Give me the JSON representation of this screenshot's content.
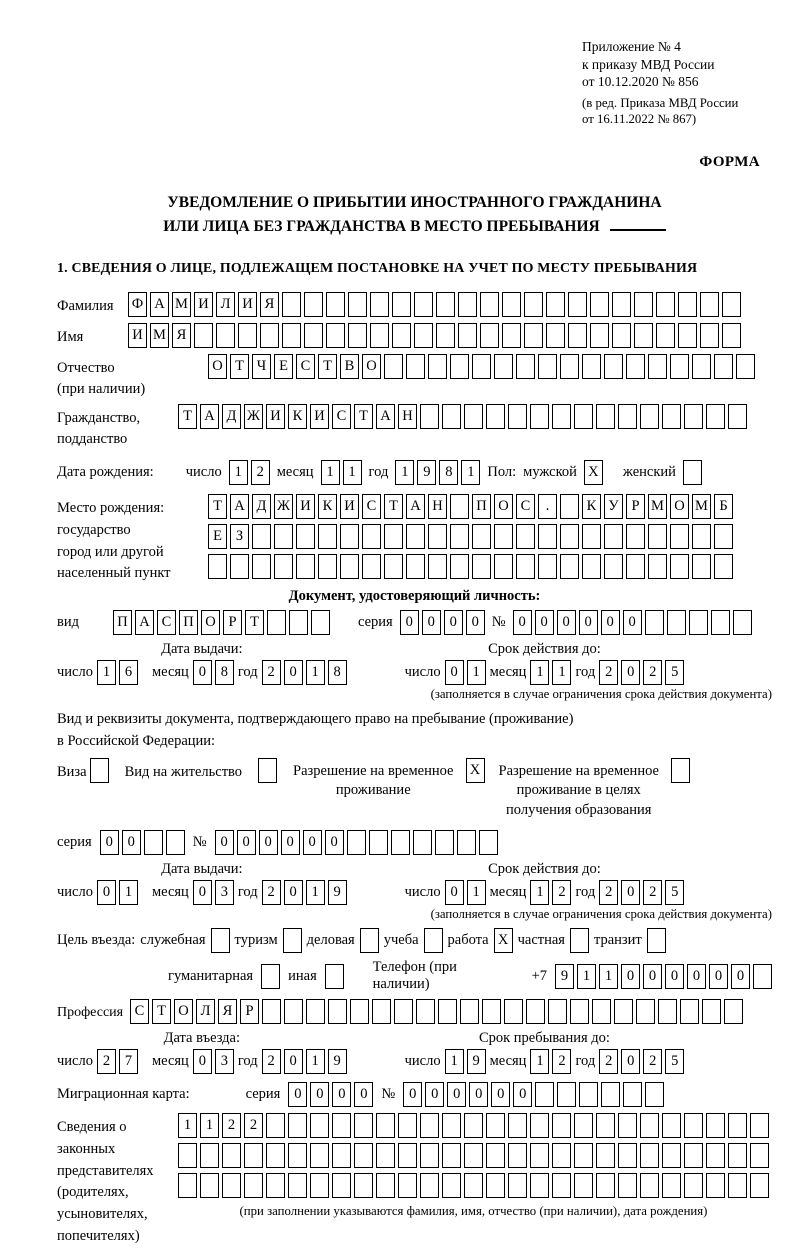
{
  "header": {
    "appendix_lines": [
      "Приложение № 4",
      "к приказу МВД России",
      "от 10.12.2020 № 856"
    ],
    "revision_lines": [
      "(в ред. Приказа МВД России",
      "от 16.11.2022 № 867)"
    ],
    "form_label": "ФОРМА"
  },
  "title": {
    "line1": "УВЕДОМЛЕНИЕ О ПРИБЫТИИ ИНОСТРАННОГО ГРАЖДАНИНА",
    "line2": "ИЛИ ЛИЦА БЕЗ ГРАЖДАНСТВА В МЕСТО ПРЕБЫВАНИЯ"
  },
  "section1_heading": "1. СВЕДЕНИЯ О ЛИЦЕ, ПОДЛЕЖАЩЕМ ПОСТАНОВКЕ НА УЧЕТ ПО МЕСТУ ПРЕБЫВАНИЯ",
  "labels": {
    "day": "число",
    "month": "месяц",
    "year": "год",
    "series": "серия",
    "number_sign": "№",
    "issue_date_header": "Дата выдачи:",
    "validity_header": "Срок действия до:",
    "validity_note": "(заполняется в случае ограничения срока действия документа)"
  },
  "rows": {
    "surname": {
      "label": "Фамилия",
      "grid": {
        "count": 28,
        "value": "ФАМИЛИЯ"
      }
    },
    "name": {
      "label": "Имя",
      "grid": {
        "count": 28,
        "value": "ИМЯ"
      }
    },
    "patronymic": {
      "label": [
        "Отчество",
        "(при наличии)"
      ],
      "grid": {
        "count": 25,
        "value": "ОТЧЕСТВО"
      }
    },
    "citizenship": {
      "label": [
        "Гражданство,",
        "подданство"
      ],
      "grid": {
        "count": 26,
        "value": "ТАДЖИКИСТАН"
      }
    },
    "birth": {
      "label": "Дата рождения:",
      "day": {
        "count": 2,
        "value": "12"
      },
      "month": {
        "count": 2,
        "value": "11"
      },
      "year": {
        "count": 4,
        "value": "1981"
      },
      "sex_label": "Пол:",
      "male_label": "мужской",
      "female_label": "женский",
      "male_box": {
        "count": 1,
        "value": "X"
      },
      "female_box": {
        "count": 1,
        "value": ""
      }
    },
    "birth_place": {
      "label": [
        "Место рождения:",
        "государство",
        "город или другой",
        "населенный пункт"
      ],
      "row1": {
        "count": 24,
        "value": "ТАДЖИКИСТАН ПОС. КУРМОМБ"
      },
      "row2": {
        "count": 24,
        "value": "ЕЗ"
      },
      "row3": {
        "count": 24,
        "value": ""
      }
    },
    "identity_doc": {
      "heading": "Документ, удостоверяющий личность:",
      "type_label": "вид",
      "type": {
        "count": 10,
        "value": "ПАСПОРТ"
      },
      "series": {
        "count": 4,
        "value": "0000"
      },
      "number": {
        "count": 11,
        "value": "000000"
      }
    },
    "id_dates": {
      "issue_day": {
        "count": 2,
        "value": "16"
      },
      "issue_month": {
        "count": 2,
        "value": "08"
      },
      "issue_year": {
        "count": 4,
        "value": "2018"
      },
      "valid_day": {
        "count": 2,
        "value": "01"
      },
      "valid_month": {
        "count": 2,
        "value": "11"
      },
      "valid_year": {
        "count": 4,
        "value": "2025"
      }
    },
    "residence_doc": {
      "line1": "Вид и реквизиты документа, подтверждающего право на пребывание (проживание)",
      "line2": "в Российской Федерации:",
      "visa_label": "Виза",
      "visa_box": {
        "count": 1,
        "value": ""
      },
      "permit_label": "Вид на жительство",
      "permit_box": {
        "count": 1,
        "value": ""
      },
      "temp_label": [
        "Разрешение на временное",
        "проживание"
      ],
      "temp_box": {
        "count": 1,
        "value": "X"
      },
      "temp_edu_label": [
        "Разрешение на временное",
        "проживание в целях",
        "получения образования"
      ],
      "temp_edu_box": {
        "count": 1,
        "value": ""
      },
      "series": {
        "count": 4,
        "value": "00"
      },
      "number": {
        "count": 13,
        "value": "000000"
      }
    },
    "res_dates": {
      "issue_day": {
        "count": 2,
        "value": "01"
      },
      "issue_month": {
        "count": 2,
        "value": "03"
      },
      "issue_year": {
        "count": 4,
        "value": "2019"
      },
      "valid_day": {
        "count": 2,
        "value": "01"
      },
      "valid_month": {
        "count": 2,
        "value": "12"
      },
      "valid_year": {
        "count": 4,
        "value": "2025"
      }
    },
    "purpose": {
      "label": "Цель въезда:",
      "options": [
        "служебная",
        "туризм",
        "деловая",
        "учеба",
        "работа",
        "частная",
        "транзит"
      ],
      "boxes": [
        {
          "count": 1,
          "value": ""
        },
        {
          "count": 1,
          "value": ""
        },
        {
          "count": 1,
          "value": ""
        },
        {
          "count": 1,
          "value": ""
        },
        {
          "count": 1,
          "value": "X"
        },
        {
          "count": 1,
          "value": ""
        },
        {
          "count": 1,
          "value": ""
        }
      ],
      "humanitarian_label": "гуманитарная",
      "humanitarian_box": {
        "count": 1,
        "value": ""
      },
      "other_label": "иная",
      "other_box": {
        "count": 1,
        "value": ""
      },
      "phone_label": "Телефон (при наличии)",
      "phone_prefix": "+7",
      "phone": {
        "count": 10,
        "value": "911000000"
      }
    },
    "profession": {
      "label": "Профессия",
      "grid": {
        "count": 28,
        "value": "СТОЛЯР"
      }
    },
    "entry_dates": {
      "left_header": "Дата въезда:",
      "right_header": "Срок пребывания до:",
      "entry_day": {
        "count": 2,
        "value": "27"
      },
      "entry_month": {
        "count": 2,
        "value": "03"
      },
      "entry_year": {
        "count": 4,
        "value": "2019"
      },
      "stay_day": {
        "count": 2,
        "value": "19"
      },
      "stay_month": {
        "count": 2,
        "value": "12"
      },
      "stay_year": {
        "count": 4,
        "value": "2025"
      }
    },
    "migration_card": {
      "label": "Миграционная карта:",
      "series": {
        "count": 4,
        "value": "0000"
      },
      "number": {
        "count": 12,
        "value": "000000"
      }
    },
    "legal_reps": {
      "label": [
        "Сведения о",
        "законных",
        "представителях",
        "(родителях,",
        "усыновителях,",
        "попечителях)"
      ],
      "row1": {
        "count": 27,
        "value": "1122"
      },
      "row2": {
        "count": 27,
        "value": ""
      },
      "row3": {
        "count": 27,
        "value": ""
      },
      "note": "(при заполнении указываются фамилия, имя, отчество (при наличии), дата рождения)"
    }
  }
}
